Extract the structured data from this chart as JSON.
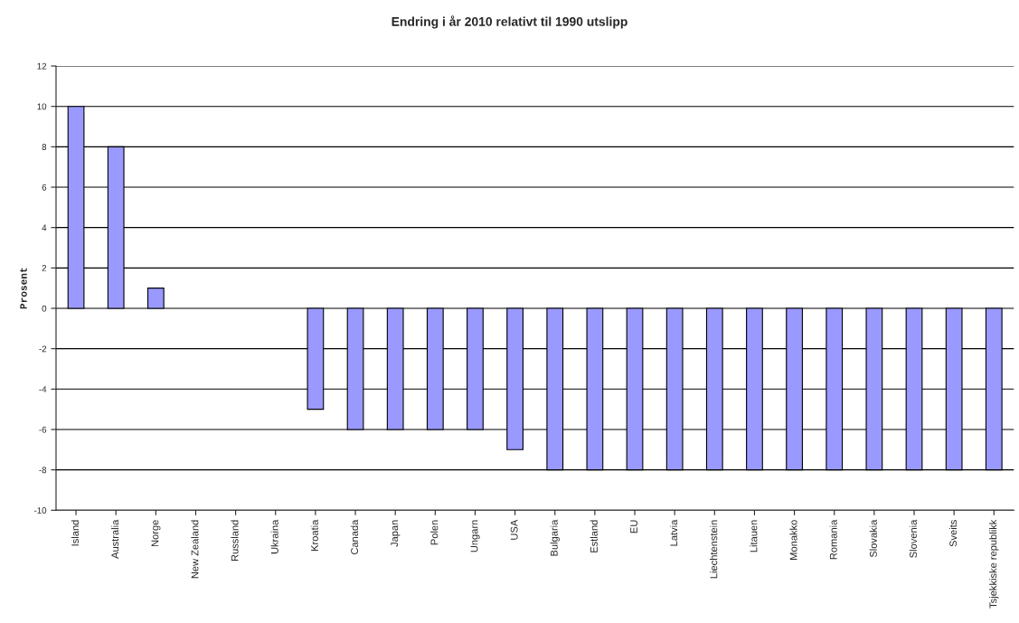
{
  "chart_data": {
    "type": "bar",
    "title": "Endring i år 2010 relativt til 1990 utslipp",
    "ylabel": "Prosent",
    "categories": [
      "Island",
      "Australia",
      "Norge",
      "New Zealand",
      "Russland",
      "Ukraina",
      "Kroatia",
      "Canada",
      "Japan",
      "Polen",
      "Ungarn",
      "USA",
      "Bulgaria",
      "Estland",
      "EU",
      "Latvia",
      "Liechtenstein",
      "Litauen",
      "Monakko",
      "Romania",
      "Slovakia",
      "Slovenia",
      "Sveits",
      "Tsjekkiske republikk"
    ],
    "values": [
      10,
      8,
      1,
      0,
      0,
      0,
      -5,
      -6,
      -6,
      -6,
      -6,
      -7,
      -8,
      -8,
      -8,
      -8,
      -8,
      -8,
      -8,
      -8,
      -8,
      -8,
      -8,
      -8
    ],
    "color": "#9999ff",
    "ylim": [
      -10,
      12
    ],
    "yticks": [
      -10,
      -8,
      -6,
      -4,
      -2,
      0,
      2,
      4,
      6,
      8,
      10,
      12
    ],
    "grid": "y"
  }
}
